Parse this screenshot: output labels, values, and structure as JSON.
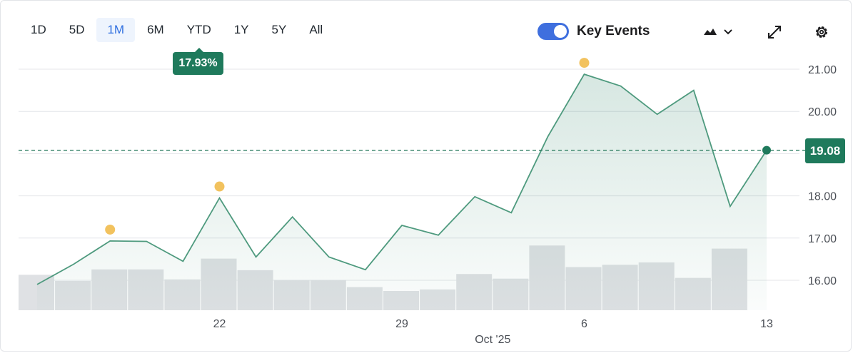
{
  "toolbar": {
    "ranges": [
      "1D",
      "5D",
      "1M",
      "6M",
      "YTD",
      "1Y",
      "5Y",
      "All"
    ],
    "active_range": "1M",
    "key_events_label": "Key Events",
    "key_events_on": true
  },
  "colors": {
    "line": "#4e9a7e",
    "accent": "#1f7a5c",
    "volume": "#dfe1e4",
    "event_marker": "#f2c25e",
    "toggle": "#3f6fde"
  },
  "icons": [
    "chart-type-icon",
    "chevron-down-icon",
    "expand-icon",
    "gear-icon"
  ],
  "change_badge": "17.93%",
  "chart_data": {
    "type": "area",
    "x": [
      "Sep 15",
      "Sep 16",
      "Sep 17",
      "Sep 18",
      "Sep 19",
      "Sep 22",
      "Sep 23",
      "Sep 24",
      "Sep 25",
      "Sep 26",
      "Sep 29",
      "Sep 30",
      "Oct 1",
      "Oct 2",
      "Oct 3",
      "Oct 6",
      "Oct 7",
      "Oct 8",
      "Oct 9",
      "Oct 10",
      "Oct 13"
    ],
    "values": [
      15.9,
      16.38,
      16.93,
      16.92,
      16.45,
      17.95,
      16.55,
      17.5,
      16.55,
      16.25,
      17.3,
      17.07,
      17.98,
      17.6,
      19.4,
      20.88,
      20.6,
      19.93,
      20.5,
      17.75,
      19.08
    ],
    "volume_relative": [
      0.46,
      0.38,
      0.53,
      0.53,
      0.4,
      0.67,
      0.52,
      0.39,
      0.39,
      0.3,
      0.25,
      0.27,
      0.47,
      0.41,
      0.84,
      0.56,
      0.59,
      0.62,
      0.42,
      0.8,
      null
    ],
    "key_event_indices": [
      2,
      5,
      15
    ],
    "ylim": [
      15.3,
      21.4
    ],
    "yticks": [
      16,
      17,
      18,
      19,
      20,
      21
    ],
    "ytick_labels": [
      "16.00",
      "17.00",
      "18.00",
      "",
      "20.00",
      "21.00"
    ],
    "xtick_indices": [
      5,
      10,
      15,
      20
    ],
    "xtick_labels": [
      "22",
      "29",
      "6",
      "13"
    ],
    "x_sublabel": "Oct '25",
    "x_sublabel_index": 13,
    "current_price": 19.08,
    "current_price_label": "19.08"
  }
}
